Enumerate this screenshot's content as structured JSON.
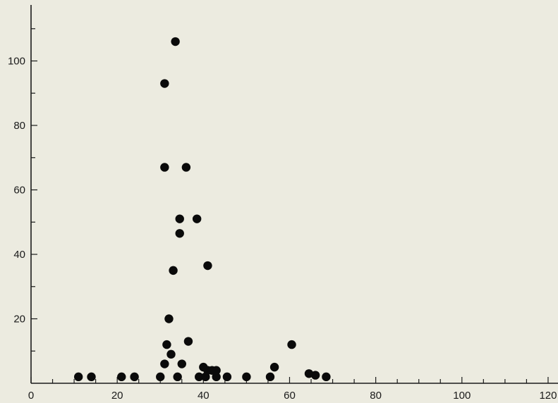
{
  "chart_data": {
    "type": "scatter",
    "title": "",
    "xlabel": "",
    "ylabel": "",
    "xlim": [
      0,
      120
    ],
    "ylim": [
      0,
      120
    ],
    "x_ticks": [
      0,
      20,
      40,
      60,
      80,
      100,
      120
    ],
    "y_ticks": [
      20,
      40,
      60,
      80,
      100
    ],
    "x_minor_step": 5,
    "y_minor_step": 10,
    "grid": false,
    "marker_color": "#0a0a0a",
    "axis_color": "#1a1a1a",
    "background_color": "#ecebe0",
    "series": [
      {
        "points": [
          [
            11,
            2
          ],
          [
            14,
            2
          ],
          [
            21,
            2
          ],
          [
            24,
            2
          ],
          [
            30,
            2
          ],
          [
            31,
            6
          ],
          [
            31,
            93
          ],
          [
            31,
            67
          ],
          [
            31.5,
            12
          ],
          [
            32,
            20
          ],
          [
            32.5,
            9
          ],
          [
            33,
            35
          ],
          [
            33.5,
            106
          ],
          [
            34,
            2
          ],
          [
            34.5,
            51
          ],
          [
            34.5,
            46.5
          ],
          [
            35,
            6
          ],
          [
            36,
            67
          ],
          [
            36.5,
            13
          ],
          [
            38.5,
            51
          ],
          [
            39,
            2
          ],
          [
            40,
            5
          ],
          [
            40.5,
            2
          ],
          [
            41,
            36.5
          ],
          [
            41,
            4
          ],
          [
            42,
            4
          ],
          [
            43,
            4
          ],
          [
            43,
            2
          ],
          [
            45.5,
            2
          ],
          [
            50,
            2
          ],
          [
            55.5,
            2
          ],
          [
            56.5,
            5
          ],
          [
            60.5,
            12
          ],
          [
            64.5,
            3
          ],
          [
            66,
            2.5
          ],
          [
            68.5,
            2
          ]
        ]
      }
    ]
  }
}
